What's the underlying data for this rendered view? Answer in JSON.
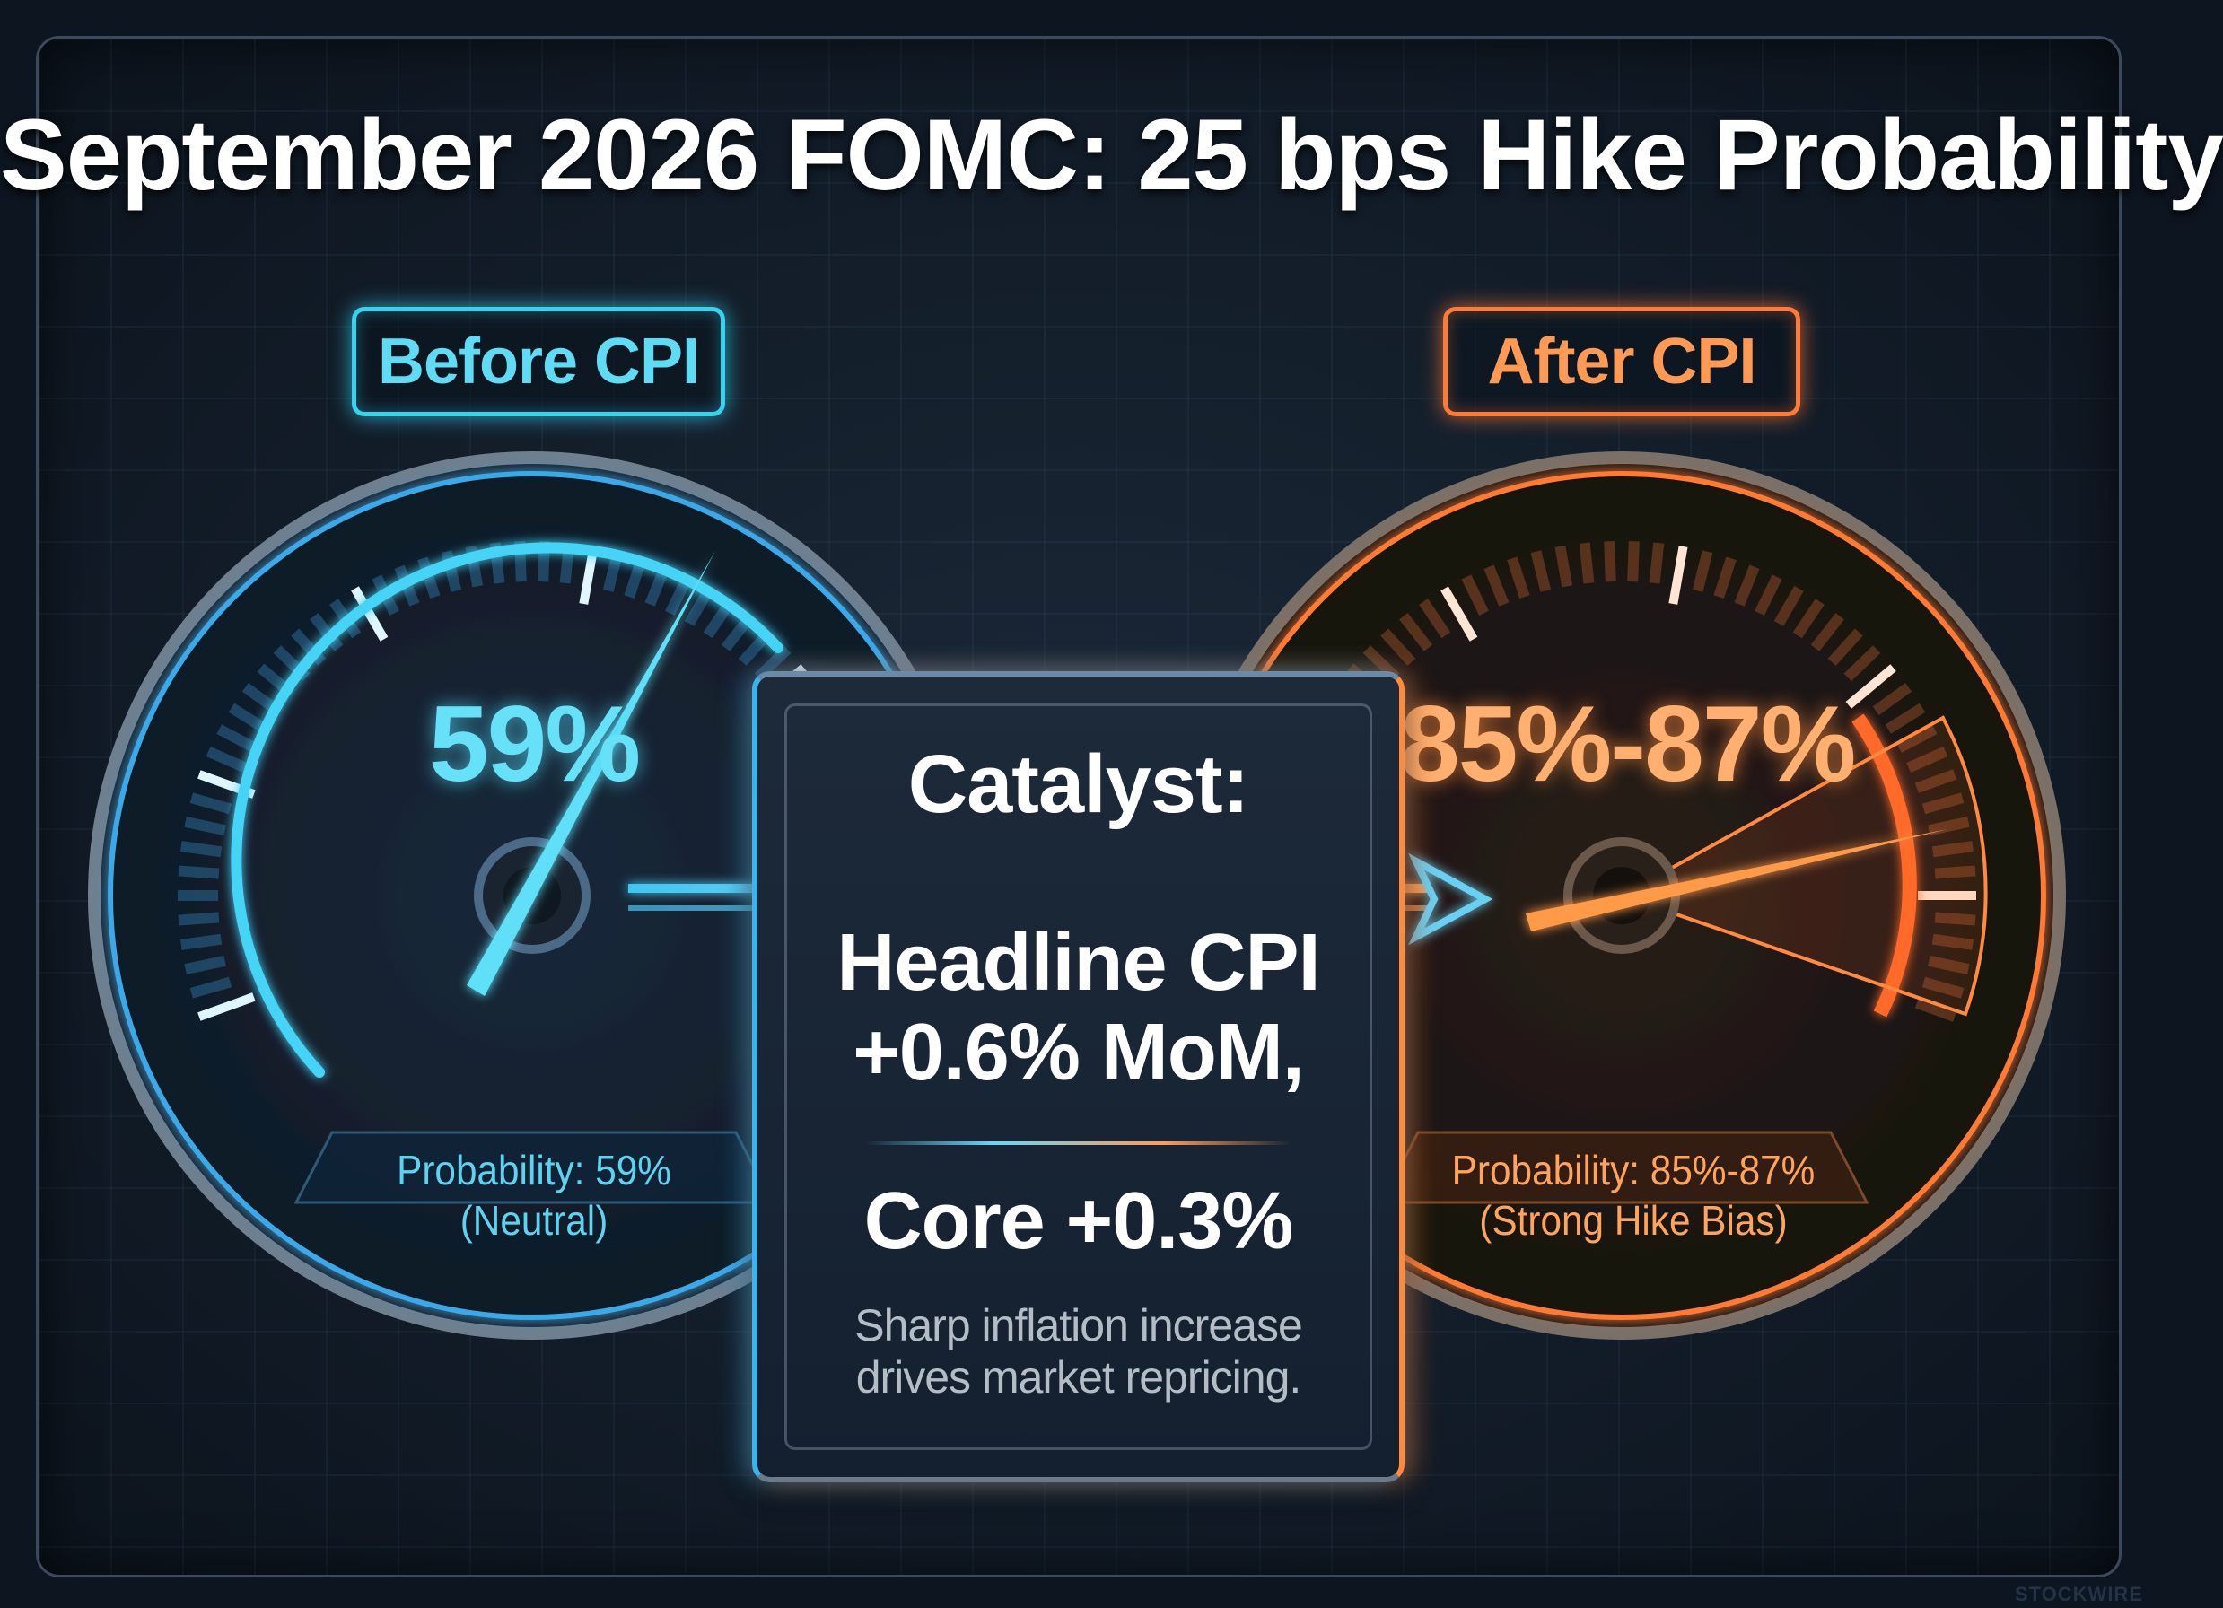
{
  "title": "September 2026 FOMC: 25 bps Hike Probability",
  "before": {
    "label": "Before CPI",
    "value": "59%",
    "probability_line": "Probability: 59%",
    "bias_line": "(Neutral)",
    "probability_pct": 59,
    "color": "#37d2f2"
  },
  "after": {
    "label": "After CPI",
    "value": "85%-87%",
    "probability_line": "Probability: 85%-87%",
    "bias_line": "(Strong Hike Bias)",
    "probability_range": [
      85,
      87
    ],
    "color": "#ff7a36"
  },
  "catalyst": {
    "heading": "Catalyst:",
    "headline_line1": "Headline CPI",
    "headline_line2": "+0.6% MoM,",
    "core_line": "Core +0.3%",
    "description_line1": "Sharp inflation increase",
    "description_line2": "drives market repricing."
  },
  "watermark": "STOCKWIRE",
  "icons": [
    "gauge-icon-before",
    "gauge-icon-after",
    "arrow-right-icon"
  ]
}
